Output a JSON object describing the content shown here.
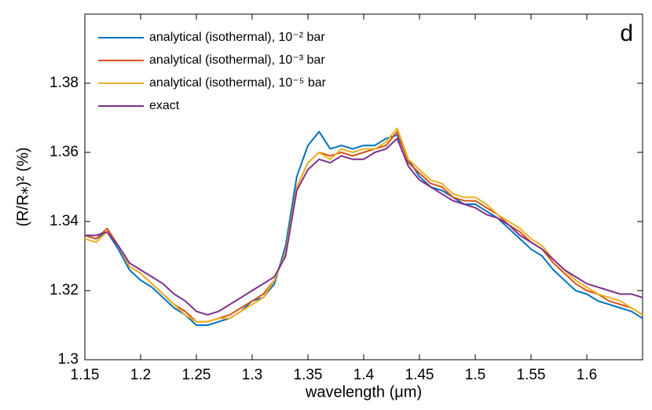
{
  "chart_data": {
    "type": "line",
    "annotation": "d",
    "xlabel": "wavelength (μm)",
    "ylabel": "(R/R⁎)² (%)",
    "xlim": [
      1.15,
      1.65
    ],
    "xticks": [
      1.15,
      1.2,
      1.25,
      1.3,
      1.35,
      1.4,
      1.45,
      1.5,
      1.55,
      1.6
    ],
    "ylim": [
      1.3,
      1.4
    ],
    "yticks": [
      1.3,
      1.32,
      1.34,
      1.36,
      1.38
    ],
    "x": [
      1.15,
      1.16,
      1.17,
      1.18,
      1.19,
      1.2,
      1.21,
      1.22,
      1.23,
      1.24,
      1.25,
      1.26,
      1.27,
      1.28,
      1.29,
      1.3,
      1.31,
      1.32,
      1.33,
      1.34,
      1.35,
      1.36,
      1.37,
      1.38,
      1.39,
      1.4,
      1.41,
      1.42,
      1.43,
      1.44,
      1.45,
      1.46,
      1.47,
      1.48,
      1.49,
      1.5,
      1.51,
      1.52,
      1.53,
      1.54,
      1.55,
      1.56,
      1.57,
      1.58,
      1.59,
      1.6,
      1.61,
      1.62,
      1.63,
      1.64,
      1.65
    ],
    "series": [
      {
        "name": "analytical (isothermal), 10⁻² bar",
        "color": "#0072bd",
        "values": [
          1.336,
          1.335,
          1.337,
          1.332,
          1.326,
          1.323,
          1.321,
          1.318,
          1.315,
          1.313,
          1.31,
          1.31,
          1.311,
          1.312,
          1.314,
          1.317,
          1.318,
          1.322,
          1.333,
          1.353,
          1.362,
          1.366,
          1.361,
          1.362,
          1.361,
          1.362,
          1.362,
          1.364,
          1.365,
          1.358,
          1.353,
          1.35,
          1.349,
          1.347,
          1.345,
          1.345,
          1.343,
          1.341,
          1.338,
          1.335,
          1.332,
          1.33,
          1.326,
          1.323,
          1.32,
          1.319,
          1.317,
          1.316,
          1.315,
          1.314,
          1.312
        ]
      },
      {
        "name": "analytical (isothermal), 10⁻³ bar",
        "color": "#d95319",
        "values": [
          1.336,
          1.335,
          1.338,
          1.333,
          1.327,
          1.325,
          1.322,
          1.319,
          1.316,
          1.314,
          1.311,
          1.311,
          1.312,
          1.313,
          1.315,
          1.317,
          1.319,
          1.323,
          1.331,
          1.35,
          1.357,
          1.36,
          1.359,
          1.36,
          1.359,
          1.36,
          1.361,
          1.362,
          1.366,
          1.357,
          1.354,
          1.351,
          1.35,
          1.347,
          1.346,
          1.346,
          1.344,
          1.342,
          1.339,
          1.337,
          1.334,
          1.332,
          1.328,
          1.325,
          1.322,
          1.32,
          1.319,
          1.317,
          1.316,
          1.315,
          1.313
        ]
      },
      {
        "name": "analytical (isothermal), 10⁻⁵ bar",
        "color": "#edb120",
        "values": [
          1.335,
          1.334,
          1.337,
          1.333,
          1.327,
          1.325,
          1.322,
          1.319,
          1.316,
          1.313,
          1.311,
          1.311,
          1.312,
          1.312,
          1.314,
          1.316,
          1.318,
          1.323,
          1.331,
          1.35,
          1.357,
          1.36,
          1.358,
          1.361,
          1.36,
          1.361,
          1.361,
          1.363,
          1.367,
          1.358,
          1.355,
          1.352,
          1.351,
          1.348,
          1.347,
          1.347,
          1.345,
          1.342,
          1.34,
          1.338,
          1.335,
          1.333,
          1.329,
          1.326,
          1.323,
          1.321,
          1.319,
          1.318,
          1.317,
          1.315,
          1.313
        ]
      },
      {
        "name": "exact",
        "color": "#7e2f8e",
        "values": [
          1.336,
          1.336,
          1.337,
          1.333,
          1.328,
          1.326,
          1.324,
          1.322,
          1.319,
          1.317,
          1.314,
          1.313,
          1.314,
          1.316,
          1.318,
          1.32,
          1.322,
          1.324,
          1.33,
          1.349,
          1.355,
          1.358,
          1.357,
          1.359,
          1.358,
          1.358,
          1.36,
          1.361,
          1.364,
          1.356,
          1.352,
          1.35,
          1.348,
          1.346,
          1.345,
          1.344,
          1.342,
          1.341,
          1.339,
          1.336,
          1.334,
          1.332,
          1.329,
          1.326,
          1.324,
          1.322,
          1.321,
          1.32,
          1.319,
          1.319,
          1.318
        ]
      }
    ]
  }
}
